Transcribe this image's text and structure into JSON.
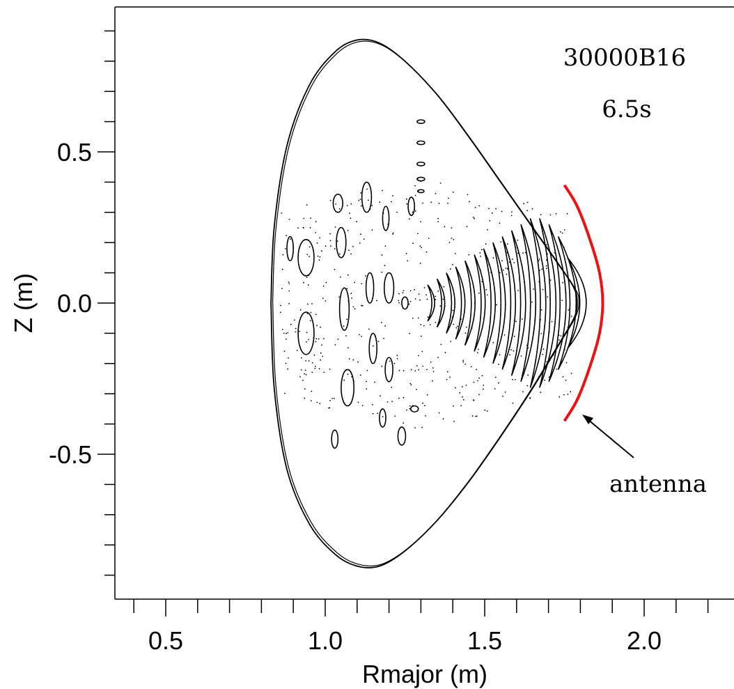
{
  "chart_data": {
    "type": "contour",
    "xlabel": "Rmajor (m)",
    "ylabel": "Z (m)",
    "xlim": [
      0.38,
      2.28
    ],
    "ylim": [
      -0.98,
      0.98
    ],
    "x_ticks": [
      {
        "value": 0.5,
        "label": "0.5"
      },
      {
        "value": 1.0,
        "label": "1.0"
      },
      {
        "value": 1.5,
        "label": "1.5"
      },
      {
        "value": 2.0,
        "label": "2.0"
      }
    ],
    "y_ticks": [
      {
        "value": 0.5,
        "label": "0.5"
      },
      {
        "value": 0.0,
        "label": "0.0"
      },
      {
        "value": -0.5,
        "label": "-0.5"
      }
    ],
    "x_minor_step": 0.1,
    "y_minor_step": 0.1,
    "grid": false,
    "annotations": {
      "shot": "30000B16",
      "time": "6.5s",
      "antenna_label": "antenna"
    },
    "colors": {
      "antenna": "#ee1111",
      "contour": "#000000"
    },
    "boundary": {
      "x": [
        0.83,
        0.84,
        0.88,
        0.95,
        1.03,
        1.1,
        1.17,
        1.25,
        1.35,
        1.45,
        1.55,
        1.65,
        1.73,
        1.78,
        1.79,
        1.78,
        1.73,
        1.65,
        1.55,
        1.45,
        1.35,
        1.25,
        1.17,
        1.1,
        1.03,
        0.95,
        0.88,
        0.84,
        0.83
      ],
      "y": [
        0.0,
        0.25,
        0.52,
        0.72,
        0.83,
        0.87,
        0.86,
        0.8,
        0.69,
        0.55,
        0.4,
        0.25,
        0.13,
        0.05,
        0.0,
        -0.05,
        -0.14,
        -0.28,
        -0.44,
        -0.59,
        -0.72,
        -0.82,
        -0.87,
        -0.87,
        -0.83,
        -0.73,
        -0.55,
        -0.28,
        0.0
      ]
    },
    "antenna": {
      "x": [
        1.75,
        1.79,
        1.83,
        1.86,
        1.87,
        1.86,
        1.83,
        1.79,
        1.75
      ],
      "y": [
        0.39,
        0.32,
        0.21,
        0.1,
        0.0,
        -0.1,
        -0.21,
        -0.32,
        -0.39
      ]
    },
    "wave_fronts": {
      "x": [
        1.33,
        1.36,
        1.39,
        1.42,
        1.45,
        1.48,
        1.51,
        1.54,
        1.57,
        1.6,
        1.63,
        1.66,
        1.69,
        1.72,
        1.75,
        1.78
      ],
      "half_height": [
        0.06,
        0.08,
        0.1,
        0.12,
        0.14,
        0.16,
        0.18,
        0.2,
        0.22,
        0.24,
        0.26,
        0.28,
        0.28,
        0.26,
        0.22,
        0.15
      ]
    }
  }
}
